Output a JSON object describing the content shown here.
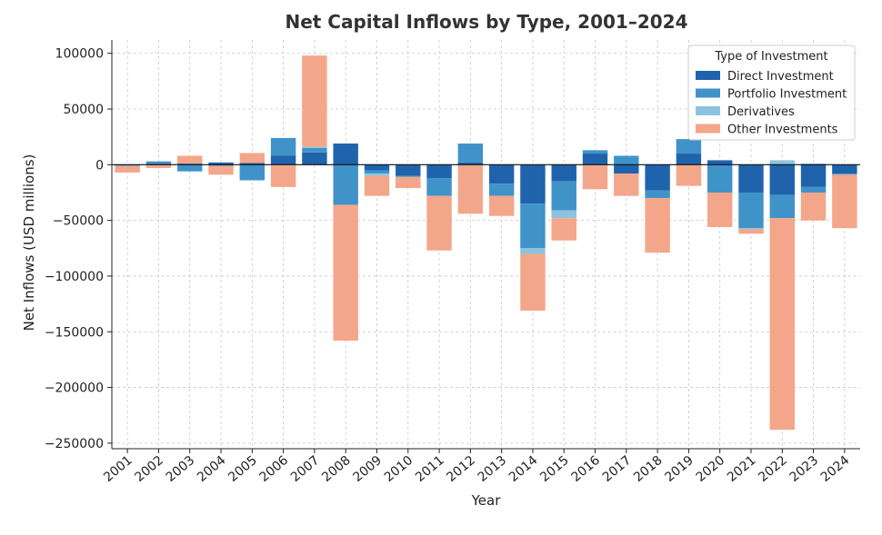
{
  "chart_data": {
    "type": "bar",
    "stacked": true,
    "title": "Net Capital Inflows by Type, 2001–2024",
    "xlabel": "Year",
    "ylabel": "Net Inflows (USD millions)",
    "ylim": [
      -255000,
      112000
    ],
    "yticks": [
      100000,
      50000,
      0,
      -50000,
      -100000,
      -150000,
      -200000,
      -250000
    ],
    "ytick_labels": [
      "100000",
      "50000",
      "0",
      "−50000",
      "−100000",
      "−150000",
      "−200000",
      "−250000"
    ],
    "grid": true,
    "legend": {
      "title": "Type of Investment",
      "position": "top-right"
    },
    "categories": [
      "2001",
      "2002",
      "2003",
      "2004",
      "2005",
      "2006",
      "2007",
      "2008",
      "2009",
      "2010",
      "2011",
      "2012",
      "2013",
      "2014",
      "2015",
      "2016",
      "2017",
      "2018",
      "2019",
      "2020",
      "2021",
      "2022",
      "2023",
      "2024"
    ],
    "series": [
      {
        "name": "Direct Investment",
        "color": "#1f63ad",
        "values": [
          -500,
          1000,
          1000,
          2000,
          1500,
          8000,
          11000,
          19000,
          -5000,
          -10000,
          -12000,
          2000,
          -17000,
          -35000,
          -15000,
          10000,
          -8000,
          -23000,
          10000,
          4000,
          -25000,
          -27000,
          -20000,
          -8000
        ]
      },
      {
        "name": "Portfolio Investment",
        "color": "#4093c8",
        "values": [
          -500,
          2000,
          -6000,
          -1000,
          -14000,
          16000,
          4000,
          -36000,
          -3000,
          -1000,
          -16000,
          17000,
          -11000,
          -40000,
          -26000,
          3000,
          8000,
          -7000,
          13000,
          -25000,
          -32000,
          -21000,
          -5000,
          -1000
        ]
      },
      {
        "name": "Derivatives",
        "color": "#8cc3e0",
        "values": [
          0,
          0,
          0,
          0,
          0,
          0,
          1000,
          0,
          -2000,
          0,
          0,
          0,
          0,
          -5000,
          -7000,
          0,
          0,
          0,
          0,
          0,
          -1000,
          4000,
          1000,
          0
        ]
      },
      {
        "name": "Other Investments",
        "color": "#f4a68a",
        "values": [
          -6000,
          -3000,
          7000,
          -8000,
          9000,
          -20000,
          82000,
          -122000,
          -18000,
          -10000,
          -49000,
          -44000,
          -18000,
          -51000,
          -20000,
          -22000,
          -20000,
          -49000,
          -19000,
          -31000,
          -4000,
          -190000,
          -25000,
          -48000
        ]
      }
    ]
  }
}
